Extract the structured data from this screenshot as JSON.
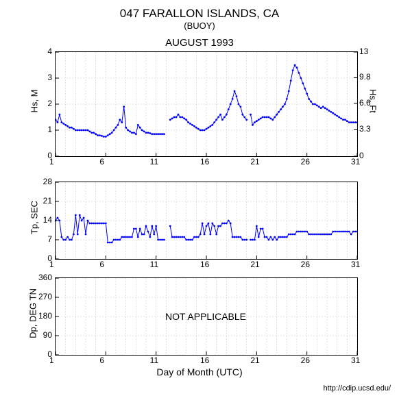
{
  "header": {
    "station": "047 FARALLON ISLANDS, CA",
    "type": "(BUOY)",
    "period": "AUGUST 1993"
  },
  "footer": {
    "url": "http://cdip.ucsd.edu/"
  },
  "xaxis": {
    "label": "Day of Month (UTC)",
    "min": 1,
    "max": 31,
    "ticks": [
      1,
      6,
      11,
      16,
      21,
      26,
      31
    ],
    "minor_step": 1
  },
  "colors": {
    "data": "#0000ff",
    "grid": "#cccccc",
    "axis": "#000000",
    "text": "#000000",
    "bg": "#ffffff"
  },
  "chart1": {
    "ylabel_left": "Hs, M",
    "ylabel_right": "Hs, Ft",
    "ylim": [
      0,
      4
    ],
    "yticks": [
      0,
      1,
      2,
      3,
      4
    ],
    "ylim_r": [
      0,
      13
    ],
    "yticks_r": [
      0,
      3.3,
      6.6,
      9.8,
      13
    ],
    "marker_size": 1.4,
    "line_width": 1,
    "series": [
      [
        1.0,
        1.4
      ],
      [
        1.2,
        1.3
      ],
      [
        1.4,
        1.6
      ],
      [
        1.6,
        1.3
      ],
      [
        1.8,
        1.25
      ],
      [
        2.0,
        1.2
      ],
      [
        2.2,
        1.15
      ],
      [
        2.4,
        1.1
      ],
      [
        2.6,
        1.1
      ],
      [
        2.8,
        1.05
      ],
      [
        3.0,
        1.0
      ],
      [
        3.2,
        1.0
      ],
      [
        3.4,
        1.0
      ],
      [
        3.6,
        1.0
      ],
      [
        3.8,
        1.0
      ],
      [
        4.0,
        1.0
      ],
      [
        4.2,
        1.0
      ],
      [
        4.4,
        0.95
      ],
      [
        4.6,
        0.9
      ],
      [
        4.8,
        0.9
      ],
      [
        5.0,
        0.85
      ],
      [
        5.2,
        0.8
      ],
      [
        5.4,
        0.8
      ],
      [
        5.6,
        0.78
      ],
      [
        5.8,
        0.75
      ],
      [
        6.0,
        0.75
      ],
      [
        6.2,
        0.8
      ],
      [
        6.4,
        0.85
      ],
      [
        6.6,
        0.9
      ],
      [
        6.8,
        1.0
      ],
      [
        7.0,
        1.1
      ],
      [
        7.2,
        1.2
      ],
      [
        7.4,
        1.4
      ],
      [
        7.6,
        1.3
      ],
      [
        7.8,
        1.9
      ],
      [
        8.0,
        1.1
      ],
      [
        8.2,
        1.0
      ],
      [
        8.4,
        0.95
      ],
      [
        8.6,
        0.9
      ],
      [
        8.8,
        0.9
      ],
      [
        9.0,
        0.85
      ],
      [
        9.2,
        1.2
      ],
      [
        9.4,
        1.1
      ],
      [
        9.6,
        1.0
      ],
      [
        9.8,
        0.95
      ],
      [
        10.0,
        0.9
      ],
      [
        10.2,
        0.9
      ],
      [
        10.4,
        0.88
      ],
      [
        10.6,
        0.85
      ],
      [
        10.8,
        0.85
      ],
      [
        11.0,
        0.85
      ],
      [
        11.2,
        0.85
      ],
      [
        11.4,
        0.85
      ],
      [
        11.6,
        0.85
      ],
      [
        11.8,
        0.85
      ],
      [
        12.4,
        1.4
      ],
      [
        12.6,
        1.45
      ],
      [
        12.8,
        1.5
      ],
      [
        13.0,
        1.5
      ],
      [
        13.2,
        1.6
      ],
      [
        13.4,
        1.5
      ],
      [
        13.6,
        1.5
      ],
      [
        13.8,
        1.45
      ],
      [
        14.0,
        1.4
      ],
      [
        14.2,
        1.3
      ],
      [
        14.4,
        1.25
      ],
      [
        14.6,
        1.2
      ],
      [
        14.8,
        1.15
      ],
      [
        15.0,
        1.1
      ],
      [
        15.2,
        1.05
      ],
      [
        15.4,
        1.0
      ],
      [
        15.6,
        1.0
      ],
      [
        15.8,
        1.0
      ],
      [
        16.0,
        1.05
      ],
      [
        16.2,
        1.1
      ],
      [
        16.4,
        1.15
      ],
      [
        16.6,
        1.2
      ],
      [
        16.8,
        1.3
      ],
      [
        17.0,
        1.4
      ],
      [
        17.2,
        1.5
      ],
      [
        17.4,
        1.6
      ],
      [
        17.6,
        1.4
      ],
      [
        17.8,
        1.5
      ],
      [
        18.0,
        1.6
      ],
      [
        18.2,
        1.8
      ],
      [
        18.4,
        2.0
      ],
      [
        18.6,
        2.2
      ],
      [
        18.8,
        2.5
      ],
      [
        19.0,
        2.3
      ],
      [
        19.2,
        2.0
      ],
      [
        19.4,
        1.9
      ],
      [
        19.6,
        1.6
      ],
      [
        19.8,
        1.5
      ],
      [
        20.0,
        1.4
      ],
      [
        20.4,
        1.6
      ],
      [
        20.6,
        1.2
      ],
      [
        20.8,
        1.3
      ],
      [
        21.0,
        1.35
      ],
      [
        21.2,
        1.4
      ],
      [
        21.4,
        1.45
      ],
      [
        21.6,
        1.5
      ],
      [
        21.8,
        1.5
      ],
      [
        22.0,
        1.5
      ],
      [
        22.2,
        1.5
      ],
      [
        22.4,
        1.45
      ],
      [
        22.6,
        1.4
      ],
      [
        22.8,
        1.5
      ],
      [
        23.0,
        1.6
      ],
      [
        23.2,
        1.7
      ],
      [
        23.4,
        1.8
      ],
      [
        23.6,
        1.9
      ],
      [
        23.8,
        2.0
      ],
      [
        24.0,
        2.2
      ],
      [
        24.2,
        2.5
      ],
      [
        24.4,
        2.9
      ],
      [
        24.6,
        3.3
      ],
      [
        24.8,
        3.5
      ],
      [
        25.0,
        3.4
      ],
      [
        25.2,
        3.2
      ],
      [
        25.4,
        3.0
      ],
      [
        25.6,
        2.8
      ],
      [
        25.8,
        2.6
      ],
      [
        26.0,
        2.4
      ],
      [
        26.2,
        2.2
      ],
      [
        26.4,
        2.1
      ],
      [
        26.6,
        2.0
      ],
      [
        26.8,
        2.0
      ],
      [
        27.0,
        1.95
      ],
      [
        27.2,
        1.9
      ],
      [
        27.4,
        1.85
      ],
      [
        27.6,
        1.9
      ],
      [
        27.8,
        1.85
      ],
      [
        28.0,
        1.8
      ],
      [
        28.2,
        1.75
      ],
      [
        28.4,
        1.7
      ],
      [
        28.6,
        1.65
      ],
      [
        28.8,
        1.6
      ],
      [
        29.0,
        1.55
      ],
      [
        29.2,
        1.5
      ],
      [
        29.4,
        1.45
      ],
      [
        29.6,
        1.4
      ],
      [
        29.8,
        1.4
      ],
      [
        30.0,
        1.35
      ],
      [
        30.2,
        1.3
      ],
      [
        30.4,
        1.3
      ],
      [
        30.6,
        1.3
      ],
      [
        30.8,
        1.3
      ],
      [
        31.0,
        1.3
      ],
      [
        31.2,
        1.3
      ],
      [
        31.4,
        1.35
      ],
      [
        31.6,
        1.3
      ],
      [
        31.8,
        1.3
      ]
    ]
  },
  "chart2": {
    "ylabel": "Tp, SEC",
    "ylim": [
      0,
      28
    ],
    "yticks": [
      0,
      7,
      14,
      21,
      28
    ],
    "marker_size": 1.4,
    "line_width": 1,
    "series": [
      [
        1.0,
        14
      ],
      [
        1.2,
        15
      ],
      [
        1.4,
        14
      ],
      [
        1.6,
        8
      ],
      [
        1.8,
        7
      ],
      [
        2.0,
        7
      ],
      [
        2.2,
        8
      ],
      [
        2.4,
        7
      ],
      [
        2.6,
        7
      ],
      [
        2.8,
        9
      ],
      [
        3.0,
        16
      ],
      [
        3.2,
        9
      ],
      [
        3.4,
        16
      ],
      [
        3.6,
        14
      ],
      [
        3.8,
        15
      ],
      [
        4.0,
        9
      ],
      [
        4.2,
        14
      ],
      [
        4.4,
        13
      ],
      [
        4.6,
        13
      ],
      [
        4.8,
        13
      ],
      [
        5.0,
        13
      ],
      [
        5.2,
        13
      ],
      [
        5.4,
        13
      ],
      [
        5.6,
        13
      ],
      [
        5.8,
        13
      ],
      [
        6.0,
        13
      ],
      [
        6.2,
        6
      ],
      [
        6.4,
        6
      ],
      [
        6.6,
        6
      ],
      [
        6.8,
        7
      ],
      [
        7.0,
        7
      ],
      [
        7.2,
        7
      ],
      [
        7.4,
        7
      ],
      [
        7.6,
        8
      ],
      [
        7.8,
        8
      ],
      [
        8.0,
        8
      ],
      [
        8.2,
        8
      ],
      [
        8.4,
        8
      ],
      [
        8.6,
        8
      ],
      [
        8.8,
        11
      ],
      [
        9.0,
        11
      ],
      [
        9.2,
        8
      ],
      [
        9.4,
        11
      ],
      [
        9.6,
        9
      ],
      [
        9.8,
        9
      ],
      [
        10.0,
        12
      ],
      [
        10.2,
        10
      ],
      [
        10.4,
        8
      ],
      [
        10.6,
        12
      ],
      [
        10.8,
        9
      ],
      [
        11.0,
        12
      ],
      [
        11.2,
        7
      ],
      [
        11.4,
        7
      ],
      [
        11.6,
        7
      ],
      [
        11.8,
        7
      ],
      [
        12.4,
        12
      ],
      [
        12.6,
        8
      ],
      [
        12.8,
        8
      ],
      [
        13.0,
        8
      ],
      [
        13.2,
        8
      ],
      [
        13.4,
        8
      ],
      [
        13.6,
        8
      ],
      [
        13.8,
        8
      ],
      [
        14.0,
        7
      ],
      [
        14.2,
        7
      ],
      [
        14.4,
        7
      ],
      [
        14.6,
        7
      ],
      [
        14.8,
        8
      ],
      [
        15.0,
        8
      ],
      [
        15.2,
        8
      ],
      [
        15.4,
        9
      ],
      [
        15.6,
        13
      ],
      [
        15.8,
        9
      ],
      [
        16.0,
        12
      ],
      [
        16.2,
        13
      ],
      [
        16.4,
        9
      ],
      [
        16.6,
        13
      ],
      [
        16.8,
        12
      ],
      [
        17.0,
        9
      ],
      [
        17.2,
        12
      ],
      [
        17.4,
        12
      ],
      [
        17.6,
        13
      ],
      [
        17.8,
        13
      ],
      [
        18.0,
        13
      ],
      [
        18.2,
        14
      ],
      [
        18.4,
        13
      ],
      [
        18.6,
        8
      ],
      [
        18.8,
        8
      ],
      [
        19.0,
        8
      ],
      [
        19.2,
        8
      ],
      [
        19.4,
        8
      ],
      [
        19.6,
        7
      ],
      [
        19.8,
        7
      ],
      [
        20.0,
        7
      ],
      [
        20.4,
        7
      ],
      [
        20.6,
        7
      ],
      [
        20.8,
        7
      ],
      [
        21.0,
        12
      ],
      [
        21.2,
        8
      ],
      [
        21.4,
        11
      ],
      [
        21.6,
        11
      ],
      [
        21.8,
        8
      ],
      [
        22.0,
        8
      ],
      [
        22.2,
        7
      ],
      [
        22.4,
        8
      ],
      [
        22.6,
        7
      ],
      [
        22.8,
        8
      ],
      [
        23.0,
        7
      ],
      [
        23.2,
        8
      ],
      [
        23.4,
        8
      ],
      [
        23.6,
        8
      ],
      [
        23.8,
        8
      ],
      [
        24.0,
        8
      ],
      [
        24.2,
        9
      ],
      [
        24.4,
        9
      ],
      [
        24.6,
        9
      ],
      [
        24.8,
        9
      ],
      [
        25.0,
        10
      ],
      [
        25.2,
        10
      ],
      [
        25.4,
        10
      ],
      [
        25.6,
        10
      ],
      [
        25.8,
        10
      ],
      [
        26.0,
        10
      ],
      [
        26.2,
        9
      ],
      [
        26.4,
        9
      ],
      [
        26.6,
        9
      ],
      [
        26.8,
        9
      ],
      [
        27.0,
        9
      ],
      [
        27.2,
        9
      ],
      [
        27.4,
        9
      ],
      [
        27.6,
        9
      ],
      [
        27.8,
        9
      ],
      [
        28.0,
        9
      ],
      [
        28.2,
        9
      ],
      [
        28.4,
        9
      ],
      [
        28.6,
        10
      ],
      [
        28.8,
        10
      ],
      [
        29.0,
        10
      ],
      [
        29.2,
        10
      ],
      [
        29.4,
        10
      ],
      [
        29.6,
        10
      ],
      [
        29.8,
        10
      ],
      [
        30.0,
        10
      ],
      [
        30.2,
        10
      ],
      [
        30.4,
        9
      ],
      [
        30.6,
        10
      ],
      [
        30.8,
        10
      ],
      [
        31.0,
        10
      ],
      [
        31.2,
        13
      ],
      [
        31.4,
        13
      ],
      [
        31.6,
        12
      ],
      [
        31.8,
        12
      ]
    ]
  },
  "chart3": {
    "ylabel": "Dp, DEG TN",
    "ylim": [
      0,
      360
    ],
    "yticks": [
      0,
      90,
      180,
      270,
      360
    ],
    "message": "NOT APPLICABLE",
    "series": []
  }
}
